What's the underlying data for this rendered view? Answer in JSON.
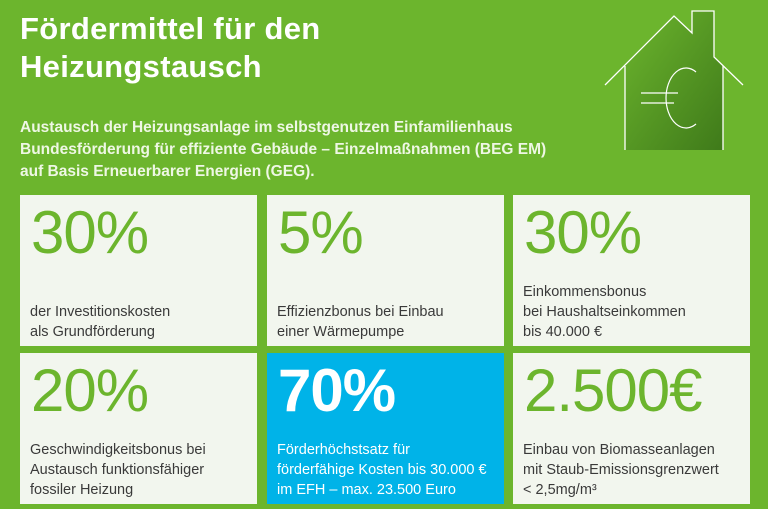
{
  "title": [
    "Fördermittel für den",
    "Heizungstausch"
  ],
  "subtitle": [
    "Austausch der Heizungsanlage im selbstgenutzen Einfamilienhaus",
    "Bundesförderung für effiziente Gebäude – Einzelmaßnahmen (BEG EM)",
    "auf Basis Erneuerbarer Energien (GEG)."
  ],
  "icon": "house-euro-icon",
  "colors": {
    "background": "#6cb52d",
    "tile": "#f2f6ee",
    "highlight": "#00b3e8"
  },
  "tiles": [
    {
      "value": "30%",
      "lines": [
        "der Investitionskosten",
        "als Grundförderung"
      ]
    },
    {
      "value": "5%",
      "lines": [
        "Effizienzbonus bei Einbau",
        "einer Wärmepumpe"
      ]
    },
    {
      "value": "30%",
      "lines": [
        "Einkommensbonus",
        "bei Haushaltseinkommen",
        "bis 40.000 €"
      ]
    },
    {
      "value": "20%",
      "lines": [
        "Geschwindigkeitsbonus bei",
        "Austausch funktionsfähiger",
        "fossiler Heizung"
      ]
    },
    {
      "value": "70%",
      "lines": [
        "Förderhöchstsatz für",
        "förderfähige Kosten bis 30.000 €",
        "im EFH – max. 23.500 Euro"
      ]
    },
    {
      "value": "2.500€",
      "lines": [
        "Einbau von Biomasseanlagen",
        "mit Staub-Emissionsgrenzwert",
        "< 2,5mg/m³"
      ]
    }
  ]
}
